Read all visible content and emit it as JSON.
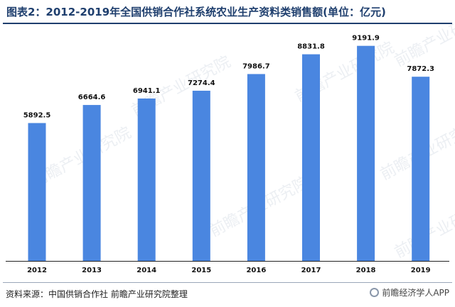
{
  "title": "图表2：2012-2019年全国供销合作社系统农业生产资料类销售额(单位：亿元)",
  "watermark": "前瞻产业研究院",
  "source_text": "资料来源：中国供销合作社 前瞻产业研究院整理",
  "brand_text": "前瞻经济学人APP",
  "colors": {
    "bar": "#4a86e0",
    "title": "#1f3f6e",
    "axis": "#222222"
  },
  "chart_data": {
    "type": "bar",
    "title": "图表2：2012-2019年全国供销合作社系统农业生产资料类销售额(单位：亿元)",
    "categories": [
      "2012",
      "2013",
      "2014",
      "2015",
      "2016",
      "2017",
      "2018",
      "2019"
    ],
    "values": [
      5892.5,
      6664.6,
      6941.1,
      7274.4,
      7986.7,
      8831.8,
      9191.9,
      7872.3
    ],
    "value_labels": [
      "5892.5",
      "6664.6",
      "6941.1",
      "7274.4",
      "7986.7",
      "8831.8",
      "9191.9",
      "7872.3"
    ],
    "ylim": [
      0,
      10000
    ],
    "grid": false,
    "legend": "none"
  }
}
